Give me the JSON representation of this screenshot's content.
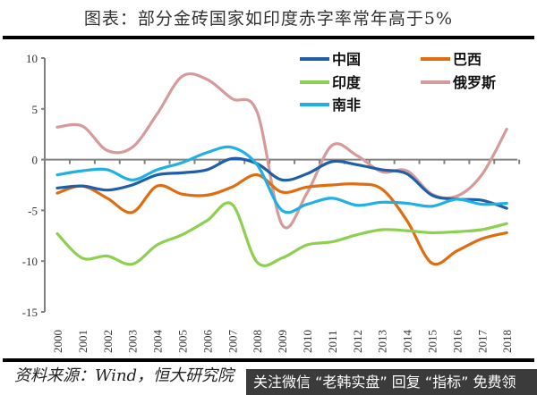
{
  "title": "图表：部分金砖国家如印度赤字率常年高于5%",
  "source": "资料来源：Wind，恒大研究院",
  "watermark": "关注微信 “老韩实盘” 回复 “指标” 免费领",
  "chart_data": {
    "type": "line",
    "title": "图表：部分金砖国家如印度赤字率常年高于5%",
    "xlabel": "",
    "ylabel": "",
    "x": [
      2000,
      2001,
      2002,
      2003,
      2004,
      2005,
      2006,
      2007,
      2008,
      2009,
      2010,
      2011,
      2012,
      2013,
      2014,
      2015,
      2016,
      2017,
      2018
    ],
    "ylim": [
      -15,
      10
    ],
    "yticks": [
      10,
      5,
      0,
      -5,
      -10,
      -15
    ],
    "grid": false,
    "legend": "top-right",
    "series": [
      {
        "name": "中国",
        "color": "#1f5fa8",
        "values": [
          -2.8,
          -2.6,
          -3.0,
          -2.5,
          -1.5,
          -1.3,
          -1.0,
          0.1,
          -0.4,
          -2.0,
          -1.4,
          -0.2,
          -0.5,
          -1.0,
          -1.4,
          -3.5,
          -3.9,
          -4.0,
          -4.8
        ]
      },
      {
        "name": "巴西",
        "color": "#e06c10",
        "values": [
          -3.3,
          -2.6,
          -3.8,
          -5.2,
          -2.6,
          -3.4,
          -3.5,
          -2.7,
          -1.5,
          -3.2,
          -2.7,
          -2.5,
          -2.4,
          -2.9,
          -6.0,
          -10.2,
          -9.0,
          -7.8,
          -7.2
        ]
      },
      {
        "name": "印度",
        "color": "#8dcf4f",
        "values": [
          -7.3,
          -9.7,
          -9.5,
          -10.3,
          -8.4,
          -7.4,
          -6.0,
          -4.4,
          -10.1,
          -9.7,
          -8.4,
          -8.1,
          -7.4,
          -6.9,
          -7.0,
          -7.2,
          -7.1,
          -6.9,
          -6.3
        ]
      },
      {
        "name": "俄罗斯",
        "color": "#d59a9a",
        "values": [
          3.2,
          3.3,
          0.9,
          1.2,
          4.5,
          8.2,
          7.9,
          6.0,
          4.7,
          -6.4,
          -3.3,
          1.4,
          0.4,
          -1.2,
          -1.1,
          -3.4,
          -3.6,
          -1.5,
          3.0
        ]
      },
      {
        "name": "南非",
        "color": "#1fb0e6",
        "values": [
          -1.5,
          -1.1,
          -1.0,
          -2.0,
          -1.0,
          -0.3,
          0.7,
          1.2,
          -0.5,
          -5.0,
          -4.4,
          -3.8,
          -4.5,
          -4.2,
          -4.3,
          -4.6,
          -3.9,
          -4.4,
          -4.3
        ]
      }
    ]
  }
}
